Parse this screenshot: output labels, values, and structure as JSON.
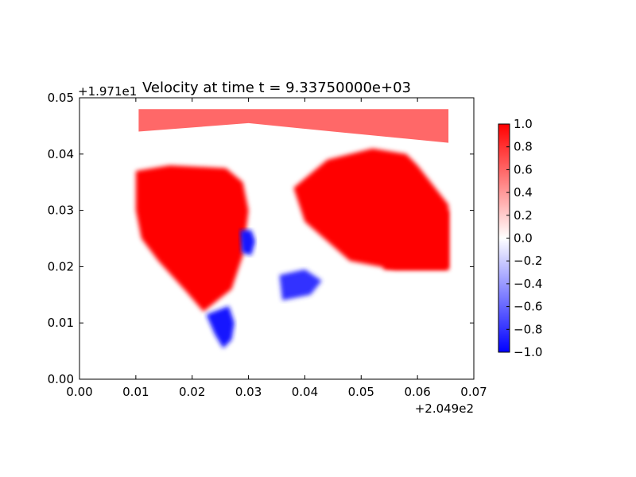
{
  "chart_data": {
    "type": "heatmap",
    "title": "Velocity at time t = 9.33750000e+03",
    "xlabel": "",
    "ylabel": "",
    "x_offset_label": "+2.049e2",
    "y_offset_label": "+1.971e1",
    "xlim": [
      0.0,
      0.07
    ],
    "ylim": [
      0.0,
      0.05
    ],
    "x_ticks": [
      "0.00",
      "0.01",
      "0.02",
      "0.03",
      "0.04",
      "0.05",
      "0.06",
      "0.07"
    ],
    "y_ticks": [
      "0.00",
      "0.01",
      "0.02",
      "0.03",
      "0.04",
      "0.05"
    ],
    "colorbar": {
      "range": [
        -1.0,
        1.0
      ],
      "ticks": [
        "1.0",
        "0.8",
        "0.6",
        "0.4",
        "0.2",
        "0.0",
        "−0.2",
        "−0.4",
        "−0.6",
        "−0.8",
        "−1.0"
      ],
      "colormap": "bwr",
      "low_color": "#0000ff",
      "mid_color": "#ffffff",
      "high_color": "#ff0000"
    },
    "field_regions": [
      {
        "name": "upper-band",
        "value": 0.7,
        "points": [
          [
            0.0105,
            0.048
          ],
          [
            0.0655,
            0.048
          ],
          [
            0.0655,
            0.042
          ],
          [
            0.045,
            0.044
          ],
          [
            0.03,
            0.0455
          ],
          [
            0.0105,
            0.044
          ]
        ]
      },
      {
        "name": "west-lobe",
        "value": 1.0,
        "points": [
          [
            0.01,
            0.037
          ],
          [
            0.016,
            0.038
          ],
          [
            0.026,
            0.0375
          ],
          [
            0.029,
            0.035
          ],
          [
            0.03,
            0.03
          ],
          [
            0.029,
            0.022
          ],
          [
            0.027,
            0.016
          ],
          [
            0.022,
            0.012
          ],
          [
            0.019,
            0.0155
          ],
          [
            0.014,
            0.021
          ],
          [
            0.011,
            0.025
          ],
          [
            0.01,
            0.03
          ]
        ]
      },
      {
        "name": "east-lobe",
        "value": 1.0,
        "points": [
          [
            0.038,
            0.034
          ],
          [
            0.044,
            0.039
          ],
          [
            0.052,
            0.041
          ],
          [
            0.058,
            0.04
          ],
          [
            0.06,
            0.038
          ],
          [
            0.0655,
            0.031
          ],
          [
            0.0655,
            0.0195
          ],
          [
            0.056,
            0.0195
          ],
          [
            0.048,
            0.021
          ],
          [
            0.044,
            0.0245
          ],
          [
            0.04,
            0.028
          ]
        ]
      },
      {
        "name": "south-east-lobe",
        "value": 1.0,
        "points": [
          [
            0.054,
            0.03
          ],
          [
            0.0655,
            0.03
          ],
          [
            0.0655,
            0.0195
          ],
          [
            0.054,
            0.0195
          ]
        ]
      },
      {
        "name": "blue-south-plume",
        "value": -0.9,
        "points": [
          [
            0.0225,
            0.0115
          ],
          [
            0.0265,
            0.013
          ],
          [
            0.0275,
            0.01
          ],
          [
            0.027,
            0.007
          ],
          [
            0.0255,
            0.0055
          ],
          [
            0.024,
            0.008
          ]
        ]
      },
      {
        "name": "blue-centre-eddy",
        "value": -0.9,
        "points": [
          [
            0.0285,
            0.0265
          ],
          [
            0.0305,
            0.0265
          ],
          [
            0.0312,
            0.0245
          ],
          [
            0.0305,
            0.022
          ],
          [
            0.0288,
            0.0225
          ]
        ]
      },
      {
        "name": "blue-bay-eddy",
        "value": -0.8,
        "points": [
          [
            0.0355,
            0.0185
          ],
          [
            0.04,
            0.0195
          ],
          [
            0.043,
            0.0175
          ],
          [
            0.041,
            0.015
          ],
          [
            0.036,
            0.014
          ]
        ]
      }
    ]
  }
}
